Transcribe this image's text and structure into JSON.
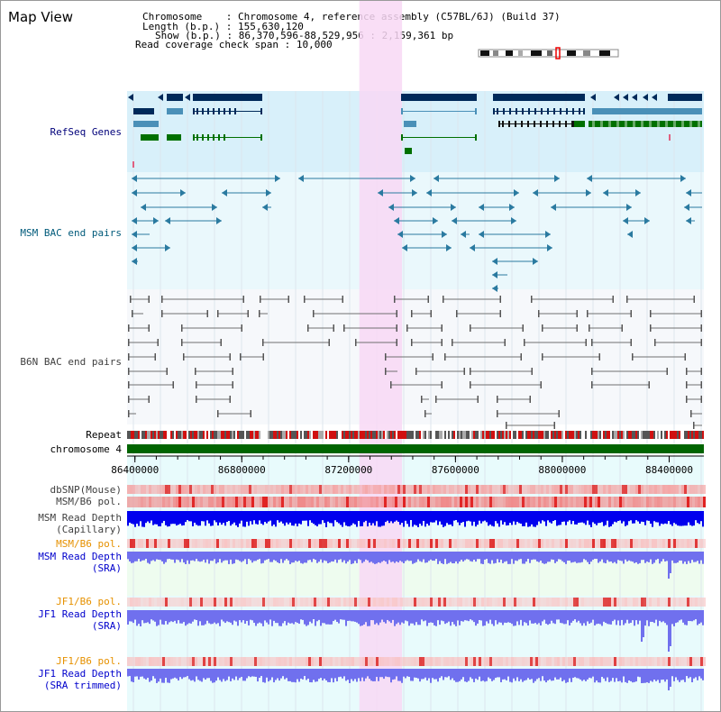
{
  "page": {
    "title": "Map View"
  },
  "info": {
    "chromosome_key": "Chromosome",
    "chromosome_value": "Chromosome 4, reference assembly (C57BL/6J) (Build 37)",
    "length_key": "Length (b.p.)",
    "length_value": "155,630,120",
    "show_key": "Show (b.p.)",
    "show_value": "86,370,596-88,529,956 : 2,159,361 bp",
    "coverage_key": "Read coverage check span",
    "coverage_value": "10,000"
  },
  "tracks": {
    "refseq": "RefSeq Genes",
    "msm_bac": "MSM BAC end pairs",
    "b6n_bac": "B6N BAC end pairs",
    "repeat": "Repeat",
    "chromosome": "chromosome 4",
    "dbsnp": "dbSNP(Mouse)",
    "msm_b6_pol": "MSM/B6 pol.",
    "msm_depth_cap_1": "MSM Read Depth",
    "msm_depth_cap_2": "(Capillary)",
    "msm_b6_pol_sra": "MSM/B6 pol.",
    "msm_depth_sra_1": "MSM Read Depth",
    "msm_depth_sra_2": "(SRA)",
    "jf1_b6_pol": "JF1/B6 pol.",
    "jf1_depth_sra_1": "JF1 Read Depth",
    "jf1_depth_sra_2": "(SRA)",
    "jf1_b6_pol_trim": "JF1/B6 pol.",
    "jf1_depth_trim_1": "JF1 Read Depth",
    "jf1_depth_trim_2": "(SRA trimmed)"
  },
  "axis": {
    "range_start": 86370596,
    "range_end": 88529956,
    "ticks": [
      "86400000",
      "86800000",
      "87200000",
      "87600000",
      "88000000",
      "88400000"
    ],
    "tick_values": [
      86400000,
      86800000,
      87200000,
      87600000,
      88000000,
      88400000
    ]
  },
  "highlight": {
    "start": 87240000,
    "end": 87400000
  },
  "colors": {
    "refseq_bg": "#d8f0fa",
    "highlight": "#f8d8f4",
    "chromosome_bar": "#006400",
    "dark_navy": "#002a5a",
    "steel": "#4a90b8",
    "green": "#007000",
    "teal": "#2a7aa0",
    "gray": "#707070",
    "depth_blue": "#0000ee",
    "depth_light": "#7070ee"
  }
}
